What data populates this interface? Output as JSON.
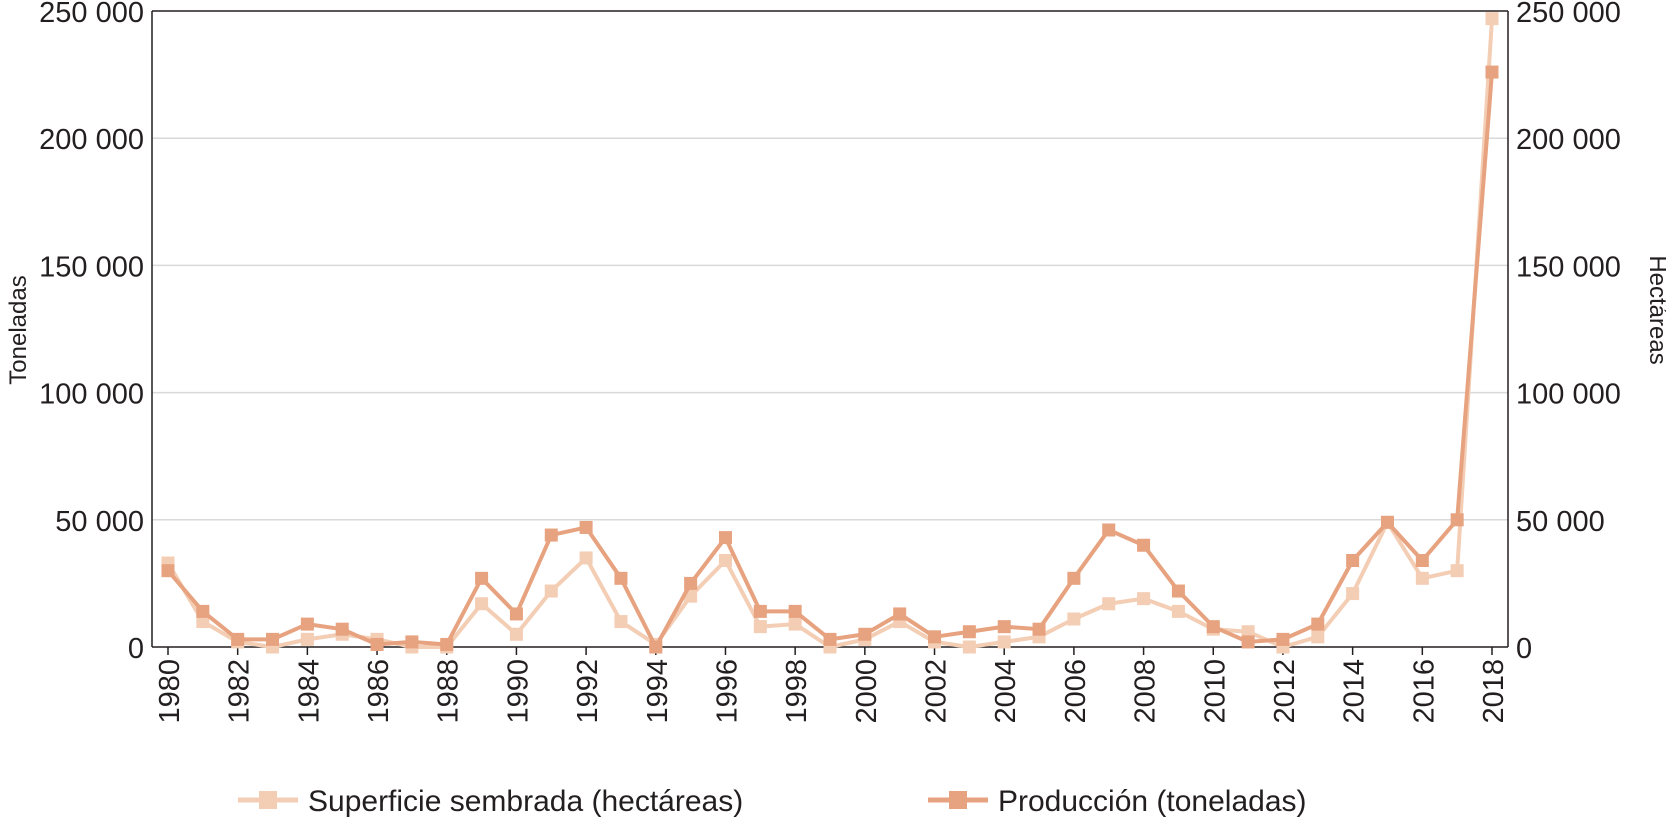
{
  "chart_data": {
    "type": "line",
    "title": "",
    "xlabel": "",
    "ylabel": "Toneladas",
    "y2label": "Hectáreas",
    "ylim": [
      0,
      250000
    ],
    "y2lim": [
      0,
      250000
    ],
    "yticks": [
      0,
      50000,
      100000,
      150000,
      200000,
      250000
    ],
    "ytick_labels": [
      "0",
      "50 000",
      "100 000",
      "150 000",
      "200 000",
      "250 000"
    ],
    "y2tick_labels": [
      "0",
      "50 000",
      "100 000",
      "150 000",
      "200 000",
      "250 000"
    ],
    "x": [
      1980,
      1981,
      1982,
      1983,
      1984,
      1985,
      1986,
      1987,
      1988,
      1989,
      1990,
      1991,
      1992,
      1993,
      1994,
      1995,
      1996,
      1997,
      1998,
      1999,
      2000,
      2001,
      2002,
      2003,
      2004,
      2005,
      2006,
      2007,
      2008,
      2009,
      2010,
      2011,
      2012,
      2013,
      2014,
      2015,
      2016,
      2017,
      2018
    ],
    "xtick_labels": [
      "1980",
      "1982",
      "1984",
      "1986",
      "1988",
      "1990",
      "1992",
      "1994",
      "1996",
      "1998",
      "2000",
      "2002",
      "2004",
      "2006",
      "2008",
      "2010",
      "2012",
      "2014",
      "2016",
      "2018"
    ],
    "grid": true,
    "legend_position": "bottom",
    "series": [
      {
        "name": "Superficie sembrada (hectáreas)",
        "axis": "right",
        "color": "#f3cdb4",
        "values": [
          33000,
          10000,
          2000,
          0,
          3000,
          5000,
          3000,
          0,
          0,
          17000,
          5000,
          22000,
          35000,
          10000,
          1000,
          20000,
          34000,
          8000,
          9000,
          0,
          3000,
          10000,
          2000,
          0,
          2000,
          4000,
          11000,
          17000,
          19000,
          14000,
          7000,
          6000,
          0,
          4000,
          21000,
          49000,
          27000,
          30000,
          247000
        ]
      },
      {
        "name": "Producción (toneladas)",
        "axis": "left",
        "color": "#e7a27f",
        "values": [
          30000,
          14000,
          3000,
          3000,
          9000,
          7000,
          1000,
          2000,
          1000,
          27000,
          13000,
          44000,
          47000,
          27000,
          0,
          25000,
          43000,
          14000,
          14000,
          3000,
          5000,
          13000,
          4000,
          6000,
          8000,
          7000,
          27000,
          46000,
          40000,
          22000,
          8000,
          2000,
          3000,
          9000,
          34000,
          49000,
          34000,
          50000,
          226000
        ]
      }
    ]
  }
}
